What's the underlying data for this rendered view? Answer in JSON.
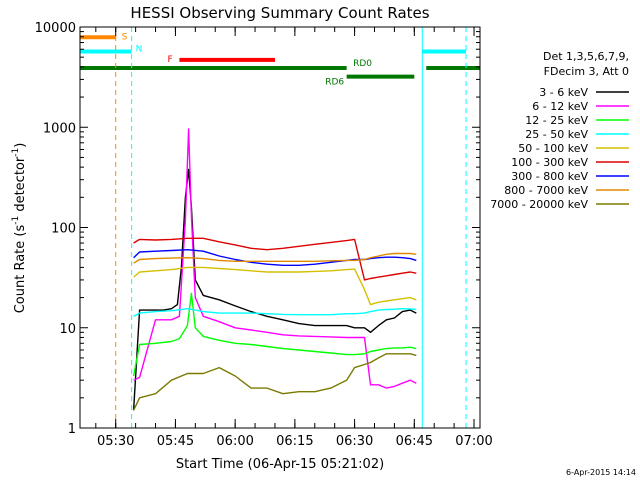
{
  "chart_data": {
    "type": "line",
    "title": "HESSI Observing Summary Count Rates",
    "xlabel": "Start Time (06-Apr-15 05:21:02)",
    "ylabel_main": "Count Rate (s",
    "ylabel_sup1": "-1",
    "ylabel_mid": " detector",
    "ylabel_sup2": "-1",
    "ylabel_end": ")",
    "y_scale": "log",
    "ylim": [
      1,
      10000
    ],
    "xlim_minutes": [
      321.03,
      421.5
    ],
    "x_ticks": [
      {
        "label": "05:30",
        "minute": 330
      },
      {
        "label": "05:45",
        "minute": 345
      },
      {
        "label": "06:00",
        "minute": 360
      },
      {
        "label": "06:15",
        "minute": 375
      },
      {
        "label": "06:30",
        "minute": 390
      },
      {
        "label": "06:45",
        "minute": 405
      },
      {
        "label": "07:00",
        "minute": 420
      }
    ],
    "y_ticks": [
      {
        "label": "1",
        "value": 1
      },
      {
        "label": "10",
        "value": 10
      },
      {
        "label": "100",
        "value": 100
      },
      {
        "label": "1000",
        "value": 1000
      },
      {
        "label": "10000",
        "value": 10000
      }
    ],
    "legend_position": "right",
    "legend_header": [
      "Det 1,3,5,6,7,9,",
      "FDecim 3, Att 0"
    ],
    "series": [
      {
        "name": "3 - 6 keV",
        "color": "#000000",
        "x": [
          334.5,
          336,
          340,
          342,
          344,
          345.5,
          346.5,
          347.5,
          348.3,
          349,
          350,
          352,
          356,
          360,
          364,
          368,
          372,
          376,
          380,
          384,
          388,
          390,
          392.5,
          394,
          396,
          398,
          400,
          402,
          404,
          405.5
        ],
        "y": [
          1.5,
          15,
          15,
          15,
          15.5,
          17,
          40,
          200,
          380,
          160,
          30,
          21,
          19,
          16.5,
          14.5,
          13,
          12,
          11,
          10.5,
          10.5,
          10.5,
          10,
          10,
          9,
          10.5,
          12,
          12.5,
          14.5,
          15,
          14
        ]
      },
      {
        "name": "6 - 12 keV",
        "color": "#ff00ff",
        "x": [
          334.5,
          336,
          340,
          344,
          346,
          347.5,
          348.3,
          349,
          350,
          352,
          356,
          360,
          364,
          368,
          372,
          376,
          380,
          384,
          388,
          390,
          392.5,
          394,
          396,
          398,
          400,
          402,
          404,
          405.5
        ],
        "y": [
          3,
          3.2,
          12,
          12,
          13,
          120,
          960,
          130,
          20,
          13,
          11.5,
          10,
          9.5,
          9,
          8.5,
          8.3,
          8.2,
          8.1,
          8,
          8,
          8,
          2.7,
          2.7,
          2.5,
          2.6,
          2.8,
          3,
          2.8
        ]
      },
      {
        "name": "12 - 25 keV",
        "color": "#00ff00",
        "x": [
          334.5,
          336,
          340,
          344,
          346,
          348,
          349,
          350,
          352,
          356,
          360,
          364,
          368,
          372,
          376,
          380,
          384,
          388,
          390,
          392.5,
          394,
          396,
          398,
          400,
          402,
          404,
          405.5
        ],
        "y": [
          3.3,
          6.8,
          7,
          7.3,
          7.8,
          10.5,
          22,
          10,
          8.2,
          7.5,
          7,
          6.8,
          6.5,
          6.2,
          6,
          5.8,
          5.6,
          5.4,
          5.4,
          5.5,
          5.8,
          6,
          6.2,
          6.3,
          6.3,
          6.4,
          6.2
        ]
      },
      {
        "name": "25 - 50 keV",
        "color": "#00ffff",
        "x": [
          334.5,
          336,
          340,
          344,
          348,
          352,
          356,
          360,
          364,
          368,
          372,
          376,
          380,
          384,
          388,
          390,
          392.5,
          394,
          396,
          398,
          400,
          402,
          404,
          405.5
        ],
        "y": [
          13,
          14,
          14.5,
          14.8,
          15.5,
          14.5,
          14,
          14,
          14,
          13.8,
          13.6,
          13.5,
          13.5,
          13.5,
          13.8,
          13.8,
          14,
          14.5,
          15,
          15.2,
          15.3,
          15.5,
          15.4,
          15.2
        ]
      },
      {
        "name": "50 - 100 keV",
        "color": "#d4c000",
        "x": [
          334.5,
          336,
          340,
          344,
          348,
          352,
          356,
          360,
          364,
          368,
          372,
          376,
          380,
          384,
          388,
          390,
          392.5,
          394,
          396,
          398,
          400,
          402,
          404,
          405.5
        ],
        "y": [
          32,
          36,
          37,
          38,
          40,
          40,
          39,
          38,
          37,
          36,
          36,
          36,
          36.5,
          37,
          38,
          38.5,
          24,
          17,
          18,
          18.5,
          19,
          19.5,
          20,
          19
        ]
      },
      {
        "name": "100 - 300 keV",
        "color": "#dd0000",
        "x": [
          334.5,
          336,
          340,
          344,
          348,
          352,
          356,
          360,
          364,
          368,
          372,
          376,
          380,
          384,
          388,
          390,
          392.5,
          394,
          396,
          398,
          400,
          402,
          404,
          405.5
        ],
        "y": [
          70,
          76,
          75,
          76,
          78,
          78,
          72,
          67,
          62,
          60,
          62,
          65,
          68,
          71,
          74,
          76,
          30,
          31,
          32,
          33,
          34,
          35,
          36,
          35
        ]
      },
      {
        "name": "300 - 800 keV",
        "color": "#0000ff",
        "x": [
          334.5,
          336,
          340,
          344,
          348,
          352,
          356,
          360,
          364,
          368,
          372,
          376,
          380,
          384,
          388,
          390,
          392.5,
          394,
          396,
          398,
          400,
          402,
          404,
          405.5
        ],
        "y": [
          50,
          57,
          58,
          59,
          60,
          58,
          52,
          48,
          45,
          43,
          42,
          42,
          43,
          45,
          47,
          48,
          48,
          49,
          50,
          50.5,
          50.5,
          50,
          49,
          47
        ]
      },
      {
        "name": "800 - 7000 keV",
        "color": "#e08a00",
        "x": [
          334.5,
          336,
          340,
          344,
          348,
          352,
          356,
          360,
          364,
          368,
          372,
          376,
          380,
          384,
          388,
          390,
          392.5,
          394,
          396,
          398,
          400,
          402,
          404,
          405.5
        ],
        "y": [
          44,
          48,
          49,
          49.5,
          50,
          49,
          47,
          46,
          46,
          46,
          46,
          46,
          46,
          46.5,
          47,
          47,
          48,
          50,
          52,
          54,
          55,
          55,
          55,
          54
        ]
      },
      {
        "name": "7000 - 20000 keV",
        "color": "#7a7a00",
        "x": [
          334.5,
          336,
          340,
          344,
          348,
          352,
          356,
          360,
          364,
          368,
          372,
          376,
          380,
          384,
          388,
          390,
          392.5,
          394,
          396,
          398,
          400,
          402,
          404,
          405.5
        ],
        "y": [
          1.5,
          2,
          2.2,
          3,
          3.5,
          3.5,
          4,
          3.3,
          2.5,
          2.5,
          2.2,
          2.3,
          2.3,
          2.5,
          3,
          4,
          4.3,
          4.5,
          5,
          5.5,
          5.5,
          5.5,
          5.5,
          5.3
        ]
      }
    ],
    "state_bars": [
      {
        "label": "S",
        "color": "#ff8800",
        "segments": [
          [
            321.03,
            330
          ]
        ],
        "level": 7900
      },
      {
        "label": "N",
        "color": "#00ffff",
        "segments": [
          [
            321.03,
            334
          ],
          [
            407,
            418
          ]
        ],
        "level": 5700
      },
      {
        "label": "F",
        "color": "#ff0000",
        "segments": [
          [
            346,
            370
          ]
        ],
        "level": 4700
      },
      {
        "label": "RD0",
        "color": "#007700",
        "segments": [
          [
            321.03,
            388
          ],
          [
            408,
            421.5
          ]
        ],
        "level": 3900
      },
      {
        "label": "RD6",
        "color": "#007700",
        "segments": [
          [
            388,
            405
          ]
        ],
        "level": 3200
      }
    ],
    "vertical_markers": [
      {
        "minute": 330,
        "color": "#ff8800",
        "style": "dashed"
      },
      {
        "minute": 334,
        "color": "#00ffff",
        "style": "dashed"
      },
      {
        "minute": 407,
        "color": "#00ffff",
        "style": "solid"
      },
      {
        "minute": 418,
        "color": "#00ffff",
        "style": "dashed"
      }
    ],
    "footer_date": "6-Apr-2015 14:14"
  }
}
